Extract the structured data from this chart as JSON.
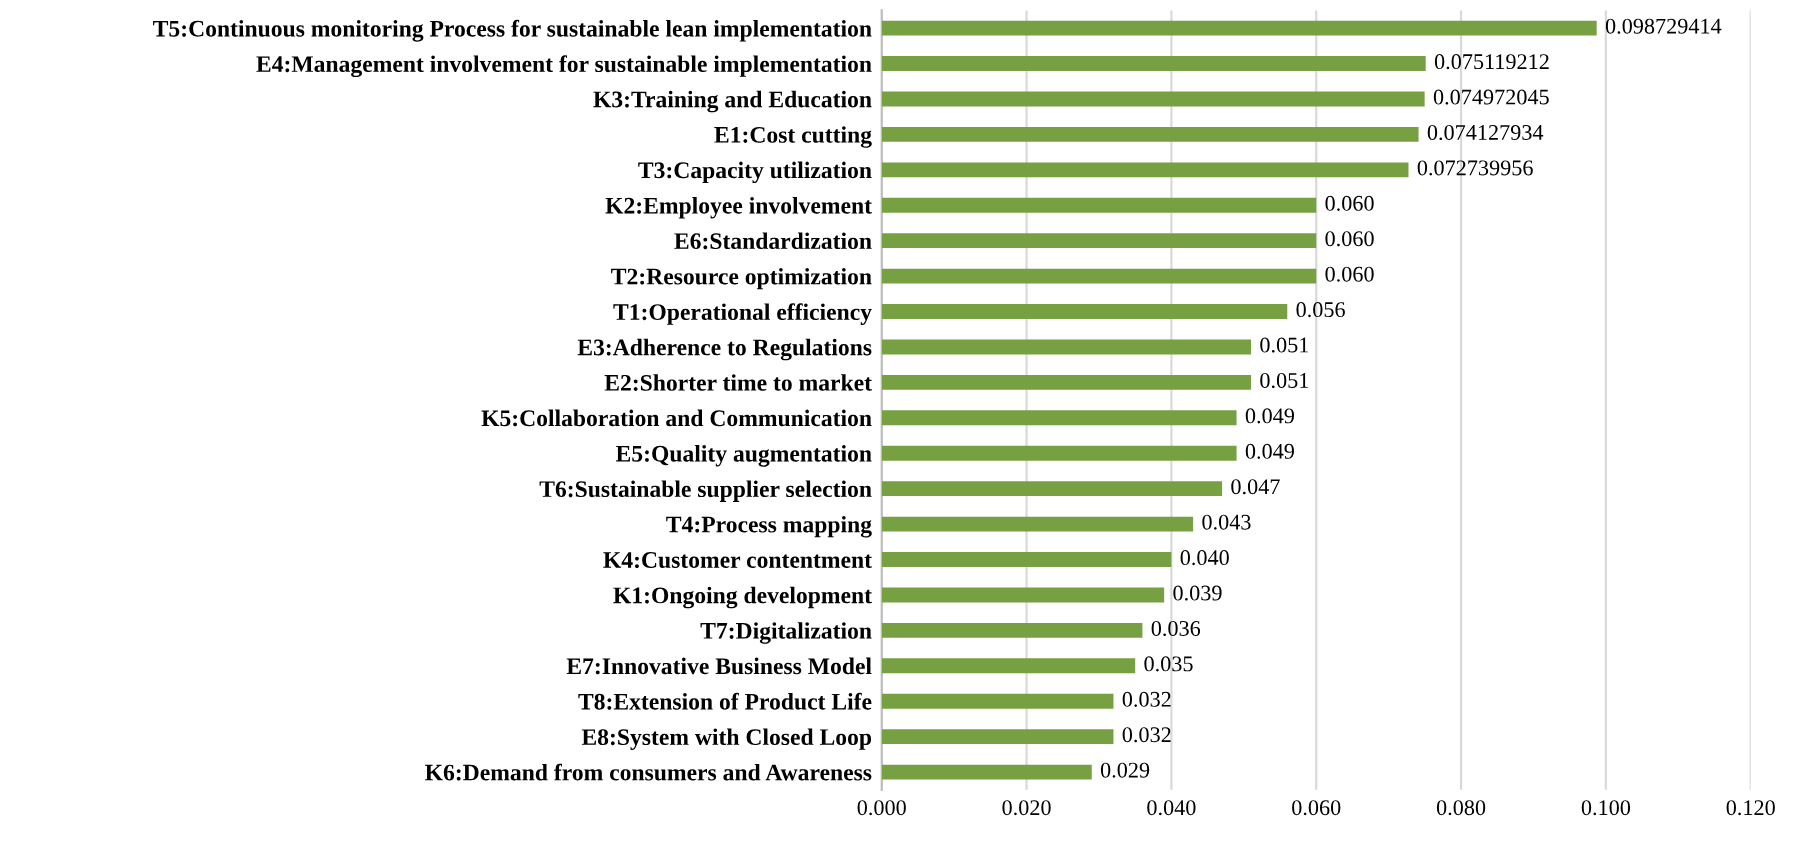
{
  "chart_data": {
    "type": "bar",
    "orientation": "horizontal",
    "categories": [
      "T5:Continuous monitoring Process for sustainable lean implementation",
      "E4:Management involvement for sustainable implementation",
      "K3:Training and Education",
      "E1:Cost cutting",
      "T3:Capacity utilization",
      "K2:Employee involvement",
      "E6:Standardization",
      "T2:Resource optimization",
      "T1:Operational efficiency",
      "E3:Adherence to Regulations",
      "E2:Shorter time to market",
      "K5:Collaboration and Communication",
      "E5:Quality augmentation",
      "T6:Sustainable supplier selection",
      "T4:Process mapping",
      "K4:Customer contentment",
      "K1:Ongoing development",
      "T7:Digitalization",
      "E7:Innovative Business Model",
      "T8:Extension of Product Life",
      "E8:System with Closed Loop",
      "K6:Demand from consumers and Awareness"
    ],
    "values": [
      0.098729414,
      0.075119212,
      0.074972045,
      0.074127934,
      0.072739956,
      0.06,
      0.06,
      0.06,
      0.056,
      0.051,
      0.051,
      0.049,
      0.049,
      0.047,
      0.043,
      0.04,
      0.039,
      0.036,
      0.035,
      0.032,
      0.032,
      0.029
    ],
    "value_labels": [
      "0.098729414",
      "0.075119212",
      "0.074972045",
      "0.074127934",
      "0.072739956",
      "0.060",
      "0.060",
      "0.060",
      "0.056",
      "0.051",
      "0.051",
      "0.049",
      "0.049",
      "0.047",
      "0.043",
      "0.040",
      "0.039",
      "0.036",
      "0.035",
      "0.032",
      "0.032",
      "0.029"
    ],
    "color": "#77a043",
    "xlim": [
      0,
      0.12
    ],
    "xticks": [
      {
        "value": 0,
        "label": "0.000"
      },
      {
        "value": 0.02,
        "label": "0.020"
      },
      {
        "value": 0.04,
        "label": "0.040"
      },
      {
        "value": 0.06,
        "label": "0.060"
      },
      {
        "value": 0.08,
        "label": "0.080"
      },
      {
        "value": 0.1,
        "label": "0.100"
      },
      {
        "value": 0.12,
        "label": "0.120"
      }
    ],
    "grid": "x",
    "legend": false
  }
}
